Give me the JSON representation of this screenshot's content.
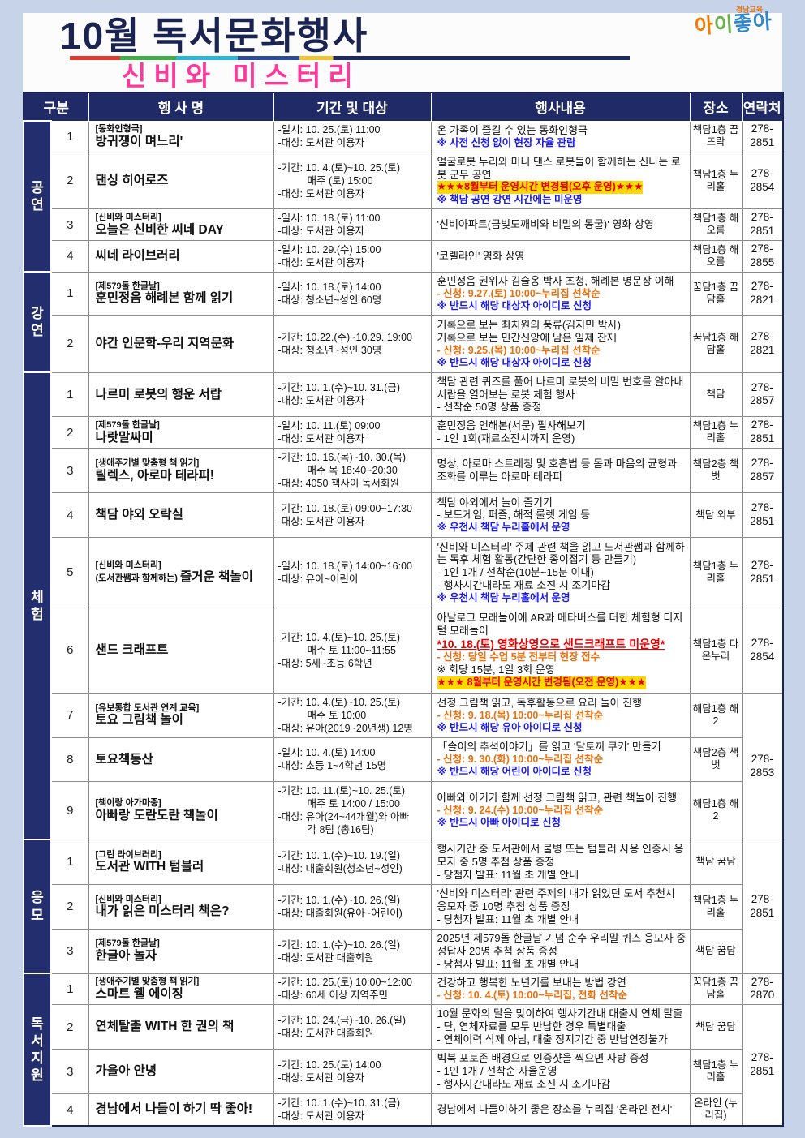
{
  "header": {
    "title": "10월 독서문화행사",
    "subtitle": "신비와 미스터리",
    "logo_top": "경남교육",
    "logo_main": "아이좋아",
    "logo_colors": [
      "#f07d00",
      "#6ab04c",
      "#2f86c8",
      "#2f86c8"
    ],
    "colors": {
      "page_background": "#c6d3e8",
      "navy": "#1f2a66",
      "title_navy": "#1b2350",
      "subtitle_pink": "#fb3a9c",
      "note_blue": "#1a1ae6",
      "note_orange": "#e8700e",
      "warning_red": "#e60000",
      "highlight_yellow": "#ffd800"
    }
  },
  "table": {
    "columns": [
      "구분",
      "행 사 명",
      "기간 및 대상",
      "행사내용",
      "장소",
      "연락처"
    ],
    "sections": [
      {
        "label": "공연",
        "rows": [
          {
            "num": "1",
            "tag": "[동화인형극]",
            "name": "방귀쟁이 며느리'",
            "period": [
              "-일시: 10. 25.(토) 11:00",
              "-대상: 도서관 이용자"
            ],
            "content": [
              {
                "text": "온 가족이 즐길 수 있는 동화인형극",
                "style": "normal"
              },
              {
                "text": "※ 사전 신청 없이 현장 자율 관람",
                "style": "blue"
              }
            ],
            "location": "책담1층 꿈뜨락",
            "contact": {
              "text": "278-2851"
            }
          },
          {
            "num": "2",
            "name": "댄싱 히어로즈",
            "period": [
              "-기간: 10. 4.(토)~10. 25.(토)",
              "매주 (토) 15:00",
              "-대상: 도서관 이용자"
            ],
            "content": [
              {
                "text": "얼굴로봇 누리와 미니 댄스 로봇들이 함께하는 신나는 로봇 군무 공연",
                "style": "normal"
              },
              {
                "text": "★★★8월부터 운영시간 변경됨(오후 운영)★★★",
                "style": "redhl"
              },
              {
                "text": "※ 책담 공연 강연 시간에는 미운영",
                "style": "blue"
              }
            ],
            "location": "책담1층 누리홀",
            "contact": {
              "text": "278-2854"
            }
          },
          {
            "num": "3",
            "tag": "[신비와 미스터리]",
            "name": "오늘은 신비한 씨네 DAY",
            "period": [
              "-일시: 10. 18.(토) 11:00",
              "-대상: 도서관 이용자"
            ],
            "content": [
              {
                "text": "'신비아파트(금빛도깨비와 비밀의 동굴)' 영화 상영",
                "style": "normal"
              }
            ],
            "location": "책담1층 해오름",
            "contact": {
              "text": "278-2851"
            }
          },
          {
            "num": "4",
            "name": "씨네 라이브러리",
            "period": [
              "-일시: 10. 29.(수) 15:00",
              "-대상: 도서관 이용자"
            ],
            "content": [
              {
                "text": "'코렐라인' 영화 상영",
                "style": "normal"
              }
            ],
            "location": "책담1층 해오름",
            "contact": {
              "text": "278-2855"
            }
          }
        ]
      },
      {
        "label": "강연",
        "rows": [
          {
            "num": "1",
            "tag": "[제579돌 한글날]",
            "name": "훈민정음 해례본 함께 읽기",
            "period": [
              "-일시: 10. 18.(토) 14:00",
              "-대상: 청소년~성인 60명"
            ],
            "content": [
              {
                "text": "훈민정음 권위자 김슬옹 박사 초청, 해례본 명문장 이해",
                "style": "normal"
              },
              {
                "text": "- 신청: 9.27.(토) 10:00~누리집 선착순",
                "style": "orange"
              },
              {
                "text": "※ 반드시 해당 대상자 아이디로 신청",
                "style": "blue"
              }
            ],
            "location": "꿈담1층 꿈담홀",
            "contact": {
              "text": "278-2821"
            }
          },
          {
            "num": "2",
            "name": "야간 인문학-우리 지역문화",
            "period": [
              "-기간: 10.22.(수)~10.29. 19:00",
              "-대상: 청소년~성인 30명"
            ],
            "content": [
              {
                "text": "기록으로 보는 최치원의 풍류(김지민 박사)",
                "style": "normal"
              },
              {
                "text": "기록으로 보는 민간신앙에 남은 일제 잔재",
                "style": "normal"
              },
              {
                "text": "- 신청: 9.25.(목) 10:00~누리집 선착순",
                "style": "orange"
              },
              {
                "text": "※ 반드시 해당 대상자 아이디로 신청",
                "style": "blue"
              }
            ],
            "location": "꿈담1층 해담홀",
            "contact": {
              "text": "278-2821"
            }
          }
        ]
      },
      {
        "label": "체험",
        "rows": [
          {
            "num": "1",
            "name": "나르미 로봇의 행운 서랍",
            "period": [
              "-기간: 10. 1.(수)~10. 31.(금)",
              "-대상: 도서관 이용자"
            ],
            "content": [
              {
                "text": "책담 관련 퀴즈를 풀어 나르미 로봇의 비밀 번호를 알아내 서랍을 열어보는 로봇 체험 행사",
                "style": "normal"
              },
              {
                "text": "- 선착순 50명 상품 증정",
                "style": "normal"
              }
            ],
            "location": "책담",
            "contact": {
              "text": "278-2857"
            }
          },
          {
            "num": "2",
            "tag": "[제579돌 한글날]",
            "name": "나랏말싸미",
            "period": [
              "-일시: 10. 11.(토) 09:00",
              "-대상: 도서관 이용자"
            ],
            "content": [
              {
                "text": "훈민정음 언해본(서문) 필사해보기",
                "style": "normal"
              },
              {
                "text": "- 1인 1회(재료소진시까지 운영)",
                "style": "normal"
              }
            ],
            "location": "책담1층 누리홀",
            "contact": {
              "text": "278-2851"
            }
          },
          {
            "num": "3",
            "tag": "[생애주기별 맞춤형 책 읽기]",
            "name": "릴렉스, 아로마 테라피!",
            "period": [
              "-기간: 10. 16.(목)~10. 30.(목)",
              "매주 목 18:40~20:30",
              "-대상: 4050 책사이 독서회원"
            ],
            "content": [
              {
                "text": "명상, 아로마 스트레칭 및 호흡법 등 몸과 마음의 균형과 조화를 이루는 아로마 테라피",
                "style": "normal"
              }
            ],
            "location": "책담2층 책벗",
            "contact": {
              "text": "278-2857"
            }
          },
          {
            "num": "4",
            "name": "책담 야외 오락실",
            "period": [
              "-기간: 10. 18.(토) 09:00~17:30",
              "-대상: 도서관 이용자"
            ],
            "content": [
              {
                "text": "책담 야외에서 놀이 즐기기",
                "style": "normal"
              },
              {
                "text": "- 보드게임, 퍼즐, 해적 룰렛 게임 등",
                "style": "normal"
              },
              {
                "text": "※ 우천시 책담 누리홀에서 운영",
                "style": "blue"
              }
            ],
            "location": "책담 외부",
            "contact": {
              "text": "278-2851"
            }
          },
          {
            "num": "5",
            "tag": "[신비와 미스터리]",
            "name_small": "(도서관쌤과 함께하는)",
            "name": "즐거운 책놀이",
            "period": [
              "-일시: 10. 18.(토) 14:00~16:00",
              "-대상: 유아~어린이"
            ],
            "content": [
              {
                "text": "'신비와 미스터리' 주제 관련 책을 읽고 도서관쌤과 함께하는 독후 체험 활동(간단한 종이접기 등 만들기)",
                "style": "normal"
              },
              {
                "text": "- 1인 1개 / 선착순(10분~15분 이내)",
                "style": "normal"
              },
              {
                "text": "- 행사시간내라도 재료 소진 시 조기마감",
                "style": "normal"
              },
              {
                "text": "※ 우천시 책담 누리홀에서 운영",
                "style": "blue"
              }
            ],
            "location": "책담1층 누리홀",
            "contact": {
              "text": "278-2851"
            }
          },
          {
            "num": "6",
            "name": "샌드 크래프트",
            "period": [
              "-기간: 10. 4.(토)~10. 25.(토)",
              "매주 토 11:00~11:55",
              "-대상: 5세~초등 6학년"
            ],
            "content": [
              {
                "text": "아날로그 모래놀이에 AR과 메타버스를 더한 체험형 디지털 모래놀이",
                "style": "normal"
              },
              {
                "text": "*10. 18.(토) 영화상영으로 샌드크래프트 미운영*",
                "style": "redu"
              },
              {
                "text": "- 신청: 당일 수업 5분 전부터 현장 접수",
                "style": "orange"
              },
              {
                "text": "※ 회당 15분, 1일 3회 운영",
                "style": "normal"
              },
              {
                "text": "★★★ 8월부터 운영시간 변경됨(오전 운영)★★★",
                "style": "redhl"
              }
            ],
            "location": "책담1층 다온누리",
            "contact": {
              "text": "278-2854"
            }
          },
          {
            "num": "7",
            "tag": "[유보통합 도서관 연계 교육]",
            "name": "토요 그림책 놀이",
            "period": [
              "-기간: 10. 4.(토)~10. 25.(토)",
              "매주 토 10:00",
              "-대상: 유아(2019~20년생) 12명"
            ],
            "content": [
              {
                "text": "선정 그림책 읽고, 독후활동으로 요리 놀이 진행",
                "style": "normal"
              },
              {
                "text": "- 신청: 9. 18.(목) 10:00~누리집 선착순",
                "style": "orange"
              },
              {
                "text": "※ 반드시 해당 유아 아이디로 신청",
                "style": "blue"
              }
            ],
            "location": "해담1층 해2",
            "contact": {
              "text": "278-2853",
              "rowspan": 3
            }
          },
          {
            "num": "8",
            "name": "토요책동산",
            "period": [
              "-일시: 10. 4.(토) 14:00",
              "-대상: 초등 1~4학년 15명"
            ],
            "content": [
              {
                "text": "「솔이의 추석이야기」를 읽고 '달토끼 쿠키' 만들기",
                "style": "normal"
              },
              {
                "text": "- 신청: 9. 30.(화) 10:00~누리집 선착순",
                "style": "orange"
              },
              {
                "text": "※ 반드시 해당 어린이 아이디로 신청",
                "style": "blue"
              }
            ],
            "location": "책담2층 책벗"
          },
          {
            "num": "9",
            "tag": "[책이랑 아가마중]",
            "name": "아빠랑 도란도란 책놀이",
            "period": [
              "-기간: 10. 11.(토)~10. 25.(토)",
              "매주 토 14:00 / 15:00",
              "-대상: 유아(24~44개월)와 아빠",
              "각 8팀 (총16팀)"
            ],
            "content": [
              {
                "text": "아빠와 아기가 함께 선정 그림책 읽고, 관련 책놀이 진행",
                "style": "normal"
              },
              {
                "text": "- 신청: 9. 24.(수) 10:00~누리집 선착순",
                "style": "orange"
              },
              {
                "text": "※ 반드시 아빠 아이디로 신청",
                "style": "blue"
              }
            ],
            "location": "해담1층 해2"
          }
        ]
      },
      {
        "label": "응모",
        "rows": [
          {
            "num": "1",
            "tag": "[그린 라이브러리]",
            "name": "도서관 WITH 텀블러",
            "period": [
              "-기간: 10. 1.(수)~10. 19.(일)",
              "-대상: 대출회원(청소년~성인)"
            ],
            "content": [
              {
                "text": "행사기간 중 도서관에서 물병 또는 텀블러 사용 인증시 응모자 중 5명 추첨 상품 증정",
                "style": "normal"
              },
              {
                "text": "- 당첨자 발표: 11월 초 개별 안내",
                "style": "normal"
              }
            ],
            "location": "책담 꿈담",
            "contact": {
              "text": "278-2851",
              "rowspan": 3
            }
          },
          {
            "num": "2",
            "tag": "[신비와 미스터리]",
            "name": "내가 읽은 미스터리 책은?",
            "period": [
              "-기간: 10. 1.(수)~10. 26.(일)",
              "-대상: 대출회원(유아~어린이)"
            ],
            "content": [
              {
                "text": "'신비와 미스터리' 관련 주제의 내가 읽었던 도서 추천시 응모자 중 10명 추첨 상품 증정",
                "style": "normal"
              },
              {
                "text": "- 당첨자 발표: 11월 초 개별 안내",
                "style": "normal"
              }
            ],
            "location": "책담1층 누리홀"
          },
          {
            "num": "3",
            "tag": "[제579돌 한글날]",
            "name": "한글아 놀자",
            "period": [
              "-기간: 10. 1.(수)~10. 26.(일)",
              "-대상: 도서관 대출회원"
            ],
            "content": [
              {
                "text": "2025년 제579돌 한글날 기념 순수 우리말 퀴즈 응모자 중 정답자 20명 추첨 상품 증정",
                "style": "normal"
              },
              {
                "text": "- 당첨자 발표: 11월 초 개별 안내",
                "style": "normal"
              }
            ],
            "location": "책담 꿈담"
          }
        ]
      },
      {
        "label": "독서지원",
        "rows": [
          {
            "num": "1",
            "tag": "[생애주기별 맞춤형 책 읽기]",
            "name": "스마트 웰 에이징",
            "period": [
              "-기간: 10. 25.(토) 10:00~12:00",
              "-대상: 60세 이상 지역주민"
            ],
            "content": [
              {
                "text": "건강하고 행복한 노년기를 보내는 방법 강연",
                "style": "normal"
              },
              {
                "text": "- 신청: 10. 4.(토) 10:00~누리집, 전화 선착순",
                "style": "orange"
              }
            ],
            "location": "꿈담1층 꿈담홀",
            "contact": {
              "text": "278-2870"
            }
          },
          {
            "num": "2",
            "name": "연체탈출 WITH 한 권의 책",
            "period": [
              "-기간: 10. 24.(금)~10. 26.(일)",
              "-대상: 도서관 대출회원"
            ],
            "content": [
              {
                "text": "10월 문화의 달을 맞이하여 행사기간내 대출시 연체 탈출",
                "style": "normal"
              },
              {
                "text": "- 단, 연체자료를 모두 반납한 경우 특별대출",
                "style": "normal"
              },
              {
                "text": "- 연체이력 삭제 아님, 대출 정지기간 중 반납연장불가",
                "style": "normal"
              }
            ],
            "location": "책담 꿈담",
            "contact": {
              "text": "278-2851",
              "rowspan": 3
            }
          },
          {
            "num": "3",
            "name": "가을아 안녕",
            "period": [
              "-기간: 10. 25.(토) 14:00",
              "-대상: 도서관 이용자"
            ],
            "content": [
              {
                "text": "빅북 포토존 배경으로 인증샷을 찍으면 사탕 증정",
                "style": "normal"
              },
              {
                "text": "- 1인 1개 / 선착순 자율운영",
                "style": "normal"
              },
              {
                "text": "- 행사시간내라도 재료 소진 시 조기마감",
                "style": "normal"
              }
            ],
            "location": "책담1층 누리홀"
          },
          {
            "num": "4",
            "name": "경남에서 나들이 하기 딱 좋아!",
            "period": [
              "-기간: 10. 1.(수)~10. 31.(금)",
              "-대상: 도서관 이용자"
            ],
            "content": [
              {
                "text": "경남에서 나들이하기 좋은 장소를 누리집 '온라인 전시'",
                "style": "normal"
              }
            ],
            "location": "온라인 (누리집)"
          }
        ]
      }
    ]
  }
}
